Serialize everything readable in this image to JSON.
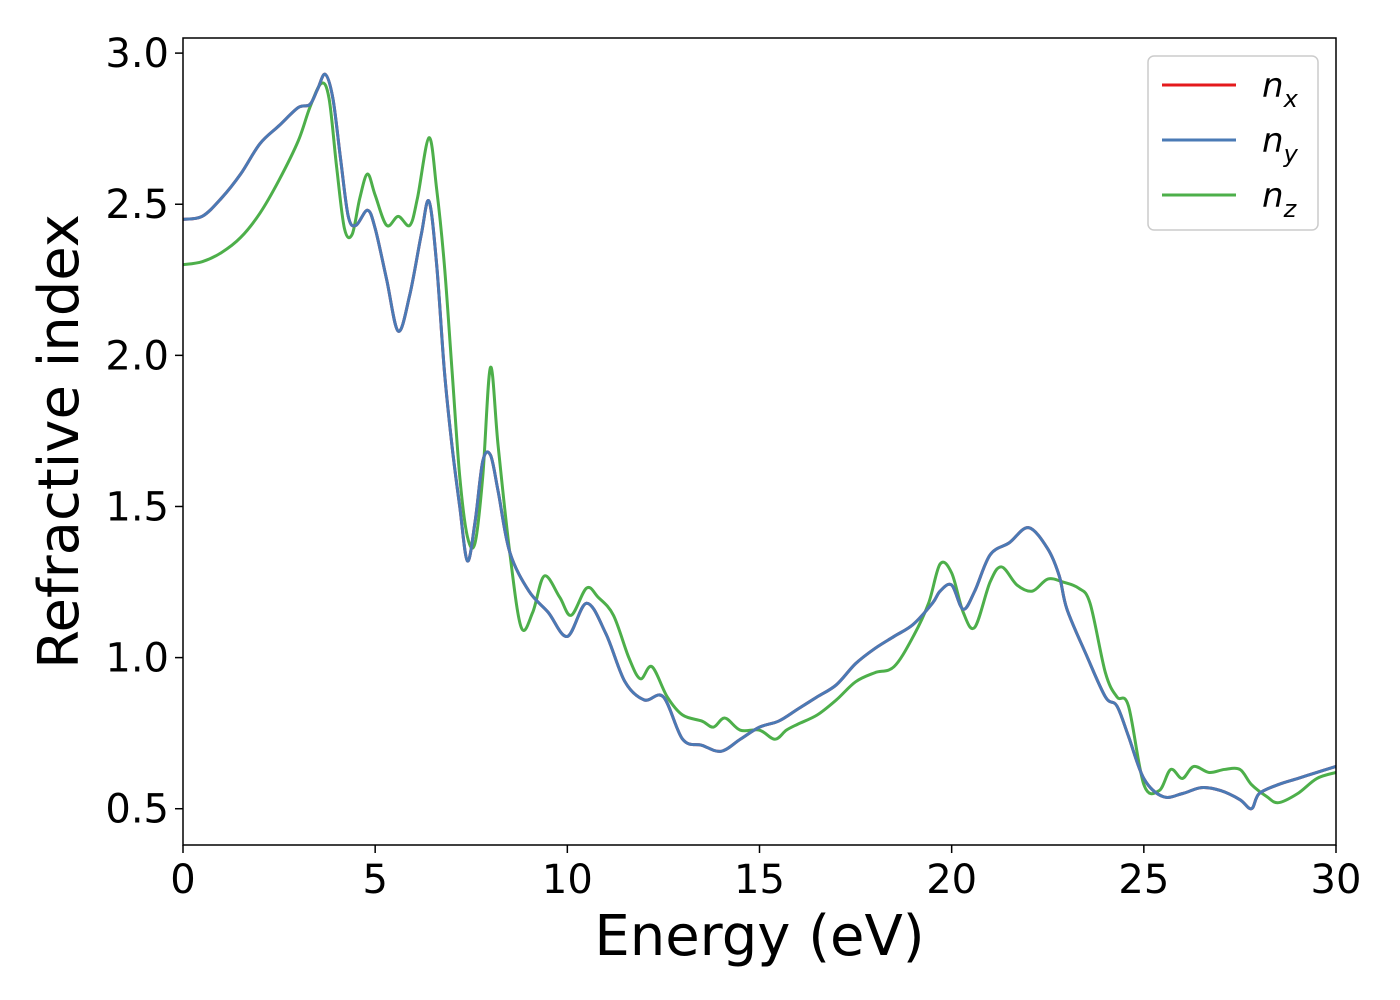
{
  "chart_data": {
    "type": "line",
    "title": "",
    "xlabel": "Energy (eV)",
    "ylabel": "Refractive index",
    "xlim": [
      0,
      30
    ],
    "ylim": [
      0.38,
      3.05
    ],
    "xticks": [
      0,
      5,
      10,
      15,
      20,
      25,
      30
    ],
    "xtick_labels": [
      "0",
      "5",
      "10",
      "15",
      "20",
      "25",
      "30"
    ],
    "yticks": [
      0.5,
      1.0,
      1.5,
      2.0,
      2.5,
      3.0
    ],
    "ytick_labels": [
      "0.5",
      "1.0",
      "1.5",
      "2.0",
      "2.5",
      "3.0"
    ],
    "grid": false,
    "legend_position": "top-right",
    "series": [
      {
        "name": "n_x",
        "label_base": "n",
        "label_sub": "x",
        "color": "#e41a1c",
        "x": [
          0,
          0.5,
          1,
          1.5,
          2,
          2.5,
          3,
          3.3,
          3.5,
          3.7,
          3.9,
          4.1,
          4.3,
          4.5,
          4.8,
          5.0,
          5.3,
          5.6,
          5.9,
          6.2,
          6.4,
          6.6,
          6.8,
          7.0,
          7.2,
          7.4,
          7.6,
          7.8,
          8.0,
          8.2,
          8.5,
          9.0,
          9.5,
          10.0,
          10.5,
          11.0,
          11.5,
          12.0,
          12.5,
          13.0,
          13.5,
          14.0,
          14.5,
          15.0,
          15.5,
          16.0,
          16.5,
          17.0,
          17.5,
          18.0,
          18.5,
          19.0,
          19.5,
          19.7,
          20.0,
          20.3,
          20.6,
          21.0,
          21.5,
          22.0,
          22.5,
          22.8,
          23.0,
          23.5,
          24.0,
          24.3,
          24.6,
          25.0,
          25.5,
          26.0,
          26.5,
          27.0,
          27.5,
          27.8,
          28.0,
          28.5,
          29.0,
          29.5,
          30.0
        ],
        "values": [
          2.45,
          2.46,
          2.52,
          2.6,
          2.7,
          2.76,
          2.82,
          2.83,
          2.88,
          2.93,
          2.85,
          2.65,
          2.46,
          2.43,
          2.48,
          2.42,
          2.25,
          2.08,
          2.2,
          2.4,
          2.51,
          2.3,
          1.95,
          1.7,
          1.5,
          1.32,
          1.45,
          1.65,
          1.67,
          1.55,
          1.35,
          1.22,
          1.15,
          1.07,
          1.18,
          1.08,
          0.92,
          0.86,
          0.87,
          0.73,
          0.71,
          0.69,
          0.73,
          0.77,
          0.79,
          0.83,
          0.87,
          0.91,
          0.98,
          1.03,
          1.07,
          1.11,
          1.18,
          1.22,
          1.24,
          1.16,
          1.22,
          1.34,
          1.38,
          1.43,
          1.36,
          1.27,
          1.16,
          1.01,
          0.87,
          0.84,
          0.74,
          0.6,
          0.54,
          0.55,
          0.57,
          0.56,
          0.53,
          0.5,
          0.55,
          0.58,
          0.6,
          0.62,
          0.64
        ]
      },
      {
        "name": "n_y",
        "label_base": "n",
        "label_sub": "y",
        "color": "#4a7ab5",
        "x": [
          0,
          0.5,
          1,
          1.5,
          2,
          2.5,
          3,
          3.3,
          3.5,
          3.7,
          3.9,
          4.1,
          4.3,
          4.5,
          4.8,
          5.0,
          5.3,
          5.6,
          5.9,
          6.2,
          6.4,
          6.6,
          6.8,
          7.0,
          7.2,
          7.4,
          7.6,
          7.8,
          8.0,
          8.2,
          8.5,
          9.0,
          9.5,
          10.0,
          10.5,
          11.0,
          11.5,
          12.0,
          12.5,
          13.0,
          13.5,
          14.0,
          14.5,
          15.0,
          15.5,
          16.0,
          16.5,
          17.0,
          17.5,
          18.0,
          18.5,
          19.0,
          19.5,
          19.7,
          20.0,
          20.3,
          20.6,
          21.0,
          21.5,
          22.0,
          22.5,
          22.8,
          23.0,
          23.5,
          24.0,
          24.3,
          24.6,
          25.0,
          25.5,
          26.0,
          26.5,
          27.0,
          27.5,
          27.8,
          28.0,
          28.5,
          29.0,
          29.5,
          30.0
        ],
        "values": [
          2.45,
          2.46,
          2.52,
          2.6,
          2.7,
          2.76,
          2.82,
          2.83,
          2.88,
          2.93,
          2.85,
          2.65,
          2.46,
          2.43,
          2.48,
          2.42,
          2.25,
          2.08,
          2.2,
          2.4,
          2.51,
          2.3,
          1.95,
          1.7,
          1.5,
          1.32,
          1.45,
          1.65,
          1.67,
          1.55,
          1.35,
          1.22,
          1.15,
          1.07,
          1.18,
          1.08,
          0.92,
          0.86,
          0.87,
          0.73,
          0.71,
          0.69,
          0.73,
          0.77,
          0.79,
          0.83,
          0.87,
          0.91,
          0.98,
          1.03,
          1.07,
          1.11,
          1.18,
          1.22,
          1.24,
          1.16,
          1.22,
          1.34,
          1.38,
          1.43,
          1.36,
          1.27,
          1.16,
          1.01,
          0.87,
          0.84,
          0.74,
          0.6,
          0.54,
          0.55,
          0.57,
          0.56,
          0.53,
          0.5,
          0.55,
          0.58,
          0.6,
          0.62,
          0.64
        ]
      },
      {
        "name": "n_z",
        "label_base": "n",
        "label_sub": "z",
        "color": "#4daf4a",
        "x": [
          0,
          0.5,
          1,
          1.5,
          2,
          2.5,
          3,
          3.3,
          3.6,
          3.8,
          4.0,
          4.2,
          4.4,
          4.6,
          4.8,
          5.0,
          5.3,
          5.6,
          5.9,
          6.1,
          6.4,
          6.6,
          6.8,
          7.0,
          7.2,
          7.4,
          7.6,
          7.8,
          8.0,
          8.2,
          8.5,
          8.8,
          9.1,
          9.4,
          9.8,
          10.1,
          10.5,
          10.8,
          11.2,
          11.6,
          11.9,
          12.2,
          12.6,
          13.0,
          13.5,
          13.8,
          14.1,
          14.5,
          15.0,
          15.4,
          15.7,
          16.0,
          16.5,
          17.0,
          17.5,
          18.0,
          18.5,
          19.0,
          19.4,
          19.7,
          20.0,
          20.3,
          20.6,
          21.0,
          21.3,
          21.7,
          22.1,
          22.5,
          22.9,
          23.3,
          23.6,
          24.0,
          24.3,
          24.6,
          25.0,
          25.4,
          25.7,
          26.0,
          26.3,
          26.7,
          27.1,
          27.5,
          27.8,
          28.2,
          28.5,
          29.0,
          29.5,
          30.0
        ],
        "values": [
          2.3,
          2.31,
          2.34,
          2.39,
          2.47,
          2.58,
          2.71,
          2.82,
          2.9,
          2.85,
          2.62,
          2.42,
          2.4,
          2.52,
          2.6,
          2.53,
          2.43,
          2.46,
          2.43,
          2.52,
          2.72,
          2.55,
          2.3,
          1.95,
          1.6,
          1.4,
          1.38,
          1.6,
          1.96,
          1.7,
          1.35,
          1.1,
          1.15,
          1.27,
          1.2,
          1.14,
          1.23,
          1.2,
          1.14,
          1.0,
          0.93,
          0.97,
          0.87,
          0.81,
          0.79,
          0.77,
          0.8,
          0.76,
          0.76,
          0.73,
          0.76,
          0.78,
          0.81,
          0.86,
          0.92,
          0.95,
          0.97,
          1.07,
          1.18,
          1.31,
          1.28,
          1.15,
          1.1,
          1.25,
          1.3,
          1.24,
          1.22,
          1.26,
          1.25,
          1.23,
          1.18,
          0.95,
          0.87,
          0.84,
          0.58,
          0.56,
          0.63,
          0.6,
          0.64,
          0.62,
          0.63,
          0.63,
          0.58,
          0.54,
          0.52,
          0.55,
          0.6,
          0.62
        ]
      }
    ]
  }
}
